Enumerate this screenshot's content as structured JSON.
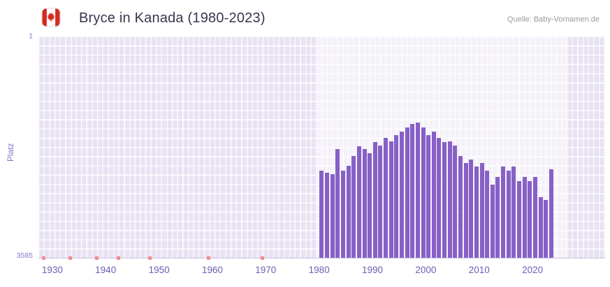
{
  "header": {
    "title": "Bryce in Kanada (1980-2023)",
    "source": "Quelle: Baby-Vornamen.de",
    "flag": "canada"
  },
  "chart_data": {
    "type": "bar",
    "title": "Bryce in Kanada (1980-2023)",
    "xlabel": "",
    "ylabel": "Platz",
    "y_axis_inverted": true,
    "ylim": [
      1,
      3585
    ],
    "xlim": [
      1927.4,
      2033.6
    ],
    "x_ticks": [
      1930,
      1940,
      1950,
      1960,
      1970,
      1980,
      1990,
      2000,
      2010,
      2020
    ],
    "y_tick_labels": [
      "1",
      "3585"
    ],
    "grid": true,
    "legend_position": "none",
    "highlight_band": {
      "from": 1979.5,
      "to": 2026.5
    },
    "years": [
      1980,
      1981,
      1982,
      1983,
      1984,
      1985,
      1986,
      1987,
      1988,
      1989,
      1990,
      1991,
      1992,
      1993,
      1994,
      1995,
      1996,
      1997,
      1998,
      1999,
      2000,
      2001,
      2002,
      2003,
      2004,
      2005,
      2006,
      2007,
      2008,
      2009,
      2010,
      2011,
      2012,
      2013,
      2014,
      2015,
      2016,
      2017,
      2018,
      2019,
      2020,
      2021,
      2022,
      2023
    ],
    "values": [
      2180,
      2210,
      2230,
      1830,
      2170,
      2100,
      1940,
      1780,
      1830,
      1890,
      1710,
      1770,
      1650,
      1700,
      1600,
      1540,
      1480,
      1420,
      1400,
      1480,
      1600,
      1540,
      1650,
      1710,
      1700,
      1770,
      1940,
      2050,
      2000,
      2110,
      2050,
      2170,
      2400,
      2280,
      2110,
      2170,
      2110,
      2340,
      2280,
      2340,
      2280,
      2600,
      2650,
      2150
    ],
    "no_data_mark_years": [
      1928,
      1933,
      1938,
      1942,
      1948,
      1959,
      1969
    ],
    "colors": {
      "bar": "#8660c6",
      "plot_bg": "#e8e2f2",
      "band_bg": "#f4f1f9",
      "grid_line": "#ffffff",
      "axis_text": "#6e5db3",
      "y_axis_text": "#8577c5",
      "no_data_mark": "#ee8e8e",
      "title_text": "#36364f",
      "source_text": "#9a9aa0",
      "flag_red": "#d52b1e"
    }
  }
}
